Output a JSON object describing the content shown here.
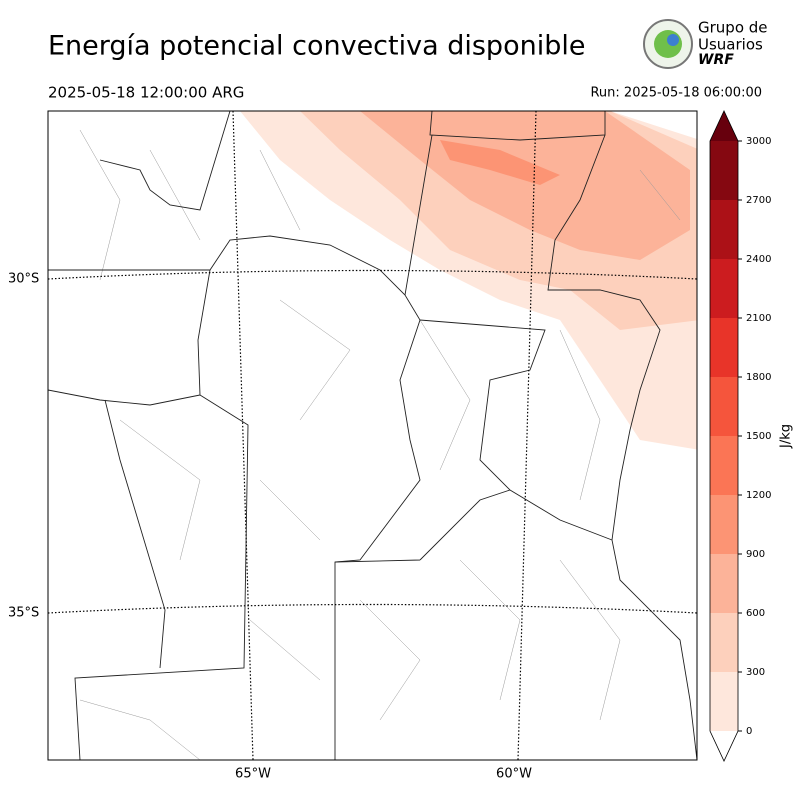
{
  "title": "Energía potencial convectiva disponible",
  "valid_time": "2025-05-18 12:00:00 ARG",
  "run": "Run: 2025-05-18 06:00:00",
  "logo": {
    "line1": "Grupo de",
    "line2": "Usuarios",
    "line3": "WRF"
  },
  "map": {
    "lat_labels": [
      "30°S",
      "35°S"
    ],
    "lon_labels": [
      "65°W",
      "60°W"
    ]
  },
  "colorbar": {
    "label": "J/kg",
    "lim": [
      0,
      3000
    ],
    "ticks": [
      0,
      300,
      600,
      900,
      1200,
      1500,
      1800,
      2100,
      2400,
      2700,
      3000
    ],
    "colors": [
      "#fee7dc",
      "#fdd0bc",
      "#fcb399",
      "#fc9474",
      "#fb7555",
      "#f5553c",
      "#e83429",
      "#cc1c1f",
      "#ac1117",
      "#850811"
    ],
    "over_color": "#67000d",
    "under_color": "#ffffff"
  }
}
